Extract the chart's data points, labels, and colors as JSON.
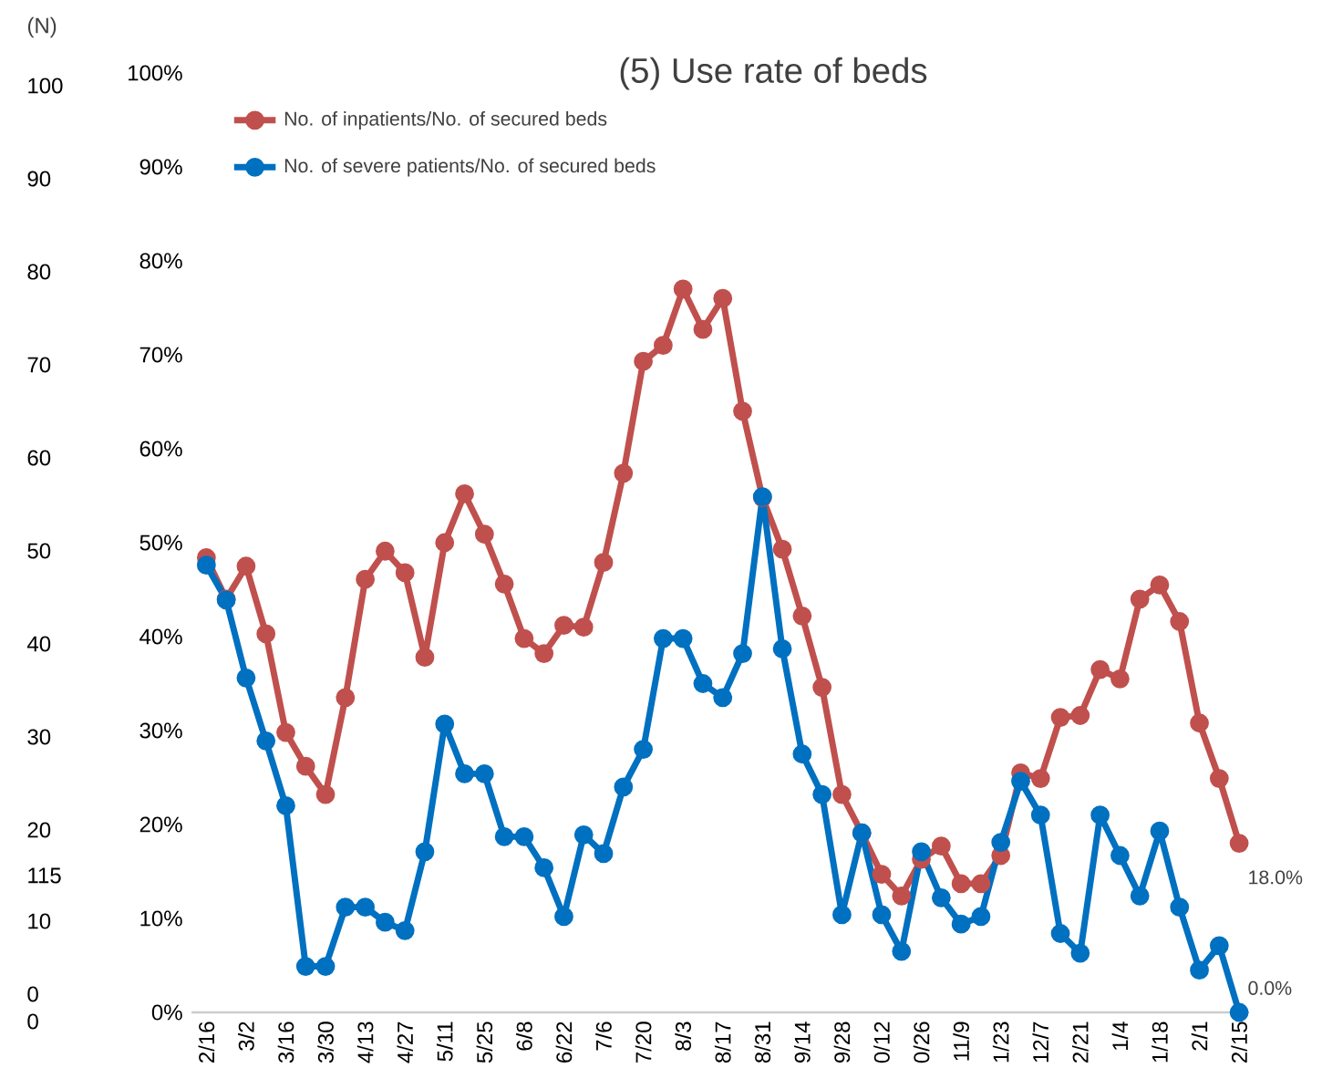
{
  "chart_data": {
    "type": "line",
    "title": "(5) Use rate of beds",
    "categories": [
      "2/16",
      null,
      "3/2",
      null,
      "3/16",
      null,
      "3/30",
      null,
      "4/13",
      null,
      "4/27",
      null,
      "5/11",
      null,
      "5/25",
      null,
      "6/8",
      null,
      "6/22",
      null,
      "7/6",
      null,
      "7/20",
      null,
      "8/3",
      null,
      "8/17",
      null,
      "8/31",
      null,
      "9/14",
      null,
      "9/28",
      null,
      "0/12",
      null,
      "0/26",
      null,
      "11/9",
      null,
      "1/23",
      null,
      "12/7",
      null,
      "2/21",
      null,
      "1/4",
      null,
      "1/18",
      null,
      "2/1",
      null,
      "2/15"
    ],
    "series": [
      {
        "name": "No. of inpatients/No. of secured beds",
        "color": "#c0504d",
        "values": [
          48.4,
          44,
          47.5,
          40.3,
          29.8,
          26.2,
          23.2,
          33.5,
          46.1,
          49.1,
          46.8,
          37.8,
          50,
          55.2,
          50.9,
          45.6,
          39.8,
          38.2,
          41.2,
          41,
          47.9,
          57.4,
          69.3,
          71,
          77,
          72.7,
          76,
          64,
          54.8,
          49.3,
          42.2,
          34.6,
          23.2,
          19.1,
          14.7,
          12.4,
          16.3,
          17.7,
          13.7,
          13.7,
          16.7,
          25.5,
          24.9,
          31.4,
          31.6,
          36.5,
          35.5,
          44,
          45.5,
          41.6,
          30.8,
          24.9,
          18.0
        ],
        "value_labels": [
          null,
          null,
          null,
          null,
          null,
          null,
          null,
          null,
          null,
          null,
          null,
          null,
          null,
          null,
          null,
          null,
          null,
          null,
          null,
          null,
          null,
          null,
          null,
          null,
          null,
          null,
          null,
          null,
          null,
          null,
          null,
          null,
          null,
          null,
          null,
          null,
          null,
          null,
          null,
          null,
          null,
          null,
          null,
          null,
          null,
          null,
          null,
          null,
          null,
          null,
          null,
          null,
          "18.0%"
        ]
      },
      {
        "name": "No. of severe patients/No. of secured beds",
        "color": "#0070c0",
        "values": [
          47.6,
          43.9,
          35.6,
          28.9,
          22,
          4.9,
          4.9,
          11.2,
          11.2,
          9.6,
          8.7,
          17.1,
          30.7,
          25.4,
          25.4,
          18.7,
          18.7,
          15.4,
          10.2,
          18.9,
          16.9,
          24,
          28,
          39.8,
          39.8,
          35,
          33.5,
          38.2,
          54.9,
          38.7,
          27.5,
          23.2,
          10.4,
          19.1,
          10.4,
          6.5,
          17.1,
          12.2,
          9.4,
          10.2,
          18.1,
          24.6,
          21,
          8.4,
          6.3,
          21,
          16.7,
          12.4,
          19.3,
          11.2,
          4.5,
          7.1,
          0.0
        ],
        "value_labels": [
          null,
          null,
          null,
          null,
          null,
          null,
          null,
          null,
          null,
          null,
          null,
          null,
          null,
          null,
          null,
          null,
          null,
          null,
          null,
          null,
          null,
          null,
          null,
          null,
          null,
          null,
          null,
          null,
          null,
          null,
          null,
          null,
          null,
          null,
          null,
          null,
          null,
          null,
          null,
          null,
          null,
          null,
          null,
          null,
          null,
          null,
          null,
          null,
          null,
          null,
          null,
          null,
          "0.0%"
        ]
      }
    ],
    "ylim": [
      0,
      100
    ],
    "yticks": [
      {
        "value": 0,
        "label": "0%"
      },
      {
        "value": 10,
        "label": "10%"
      },
      {
        "value": 20,
        "label": "20%"
      },
      {
        "value": 30,
        "label": "30%"
      },
      {
        "value": 40,
        "label": "40%"
      },
      {
        "value": 50,
        "label": "50%"
      },
      {
        "value": 60,
        "label": "60%"
      },
      {
        "value": 70,
        "label": "70%"
      },
      {
        "value": 80,
        "label": "80%"
      },
      {
        "value": 90,
        "label": "90%"
      },
      {
        "value": 100,
        "label": "100%"
      }
    ],
    "annotations": [
      "(N)",
      "100",
      "90",
      "80",
      "70",
      "60",
      "50",
      "40",
      "30",
      "20",
      "115",
      "10",
      "0",
      "0"
    ],
    "grid": false,
    "legend": "top left",
    "marker": "circle",
    "line_style": "solid"
  }
}
